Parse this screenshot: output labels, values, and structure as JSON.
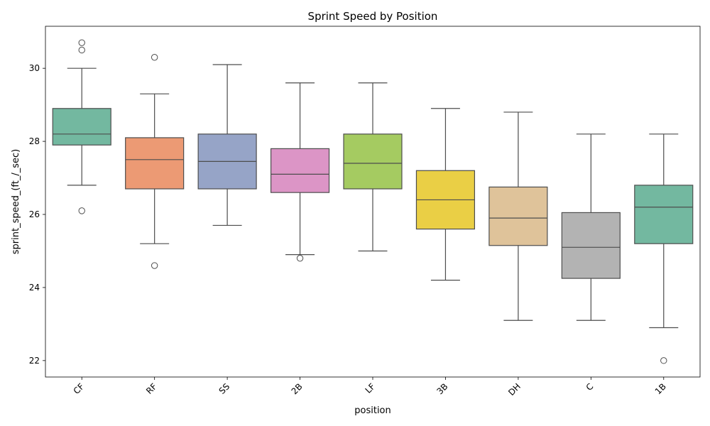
{
  "chart_data": {
    "type": "box",
    "title": "Sprint Speed by Position",
    "xlabel": "position",
    "ylabel": "sprint_speed_(ft_/_sec)",
    "ylim": [
      21.55,
      31.15
    ],
    "yticks": [
      22,
      24,
      26,
      28,
      30
    ],
    "grid": false,
    "legend": "none",
    "categories": [
      "CF",
      "RF",
      "SS",
      "2B",
      "LF",
      "3B",
      "DH",
      "C",
      "1B"
    ],
    "colors": [
      "#73b8a0",
      "#ec9a74",
      "#96a4c7",
      "#dc95c6",
      "#a5cb61",
      "#eacf45",
      "#dfc39a",
      "#b3b3b3",
      "#73b8a0"
    ],
    "boxes": [
      {
        "category": "CF",
        "whisker_low": 26.8,
        "q1": 27.9,
        "median": 28.2,
        "q3": 28.9,
        "whisker_high": 30.0,
        "outliers": [
          30.7,
          30.5,
          26.1
        ]
      },
      {
        "category": "RF",
        "whisker_low": 25.2,
        "q1": 26.7,
        "median": 27.5,
        "q3": 28.1,
        "whisker_high": 29.3,
        "outliers": [
          30.3,
          24.6
        ]
      },
      {
        "category": "SS",
        "whisker_low": 25.7,
        "q1": 26.7,
        "median": 27.45,
        "q3": 28.2,
        "whisker_high": 30.1,
        "outliers": []
      },
      {
        "category": "2B",
        "whisker_low": 24.9,
        "q1": 26.6,
        "median": 27.1,
        "q3": 27.8,
        "whisker_high": 29.6,
        "outliers": [
          24.8
        ]
      },
      {
        "category": "LF",
        "whisker_low": 25.0,
        "q1": 26.7,
        "median": 27.4,
        "q3": 28.2,
        "whisker_high": 29.6,
        "outliers": []
      },
      {
        "category": "3B",
        "whisker_low": 24.2,
        "q1": 25.6,
        "median": 26.4,
        "q3": 27.2,
        "whisker_high": 28.9,
        "outliers": []
      },
      {
        "category": "DH",
        "whisker_low": 23.1,
        "q1": 25.15,
        "median": 25.9,
        "q3": 26.75,
        "whisker_high": 28.8,
        "outliers": []
      },
      {
        "category": "C",
        "whisker_low": 23.1,
        "q1": 24.25,
        "median": 25.1,
        "q3": 26.05,
        "whisker_high": 28.2,
        "outliers": []
      },
      {
        "category": "1B",
        "whisker_low": 22.9,
        "q1": 25.2,
        "median": 26.2,
        "q3": 26.8,
        "whisker_high": 28.2,
        "outliers": [
          22.0
        ]
      }
    ]
  }
}
